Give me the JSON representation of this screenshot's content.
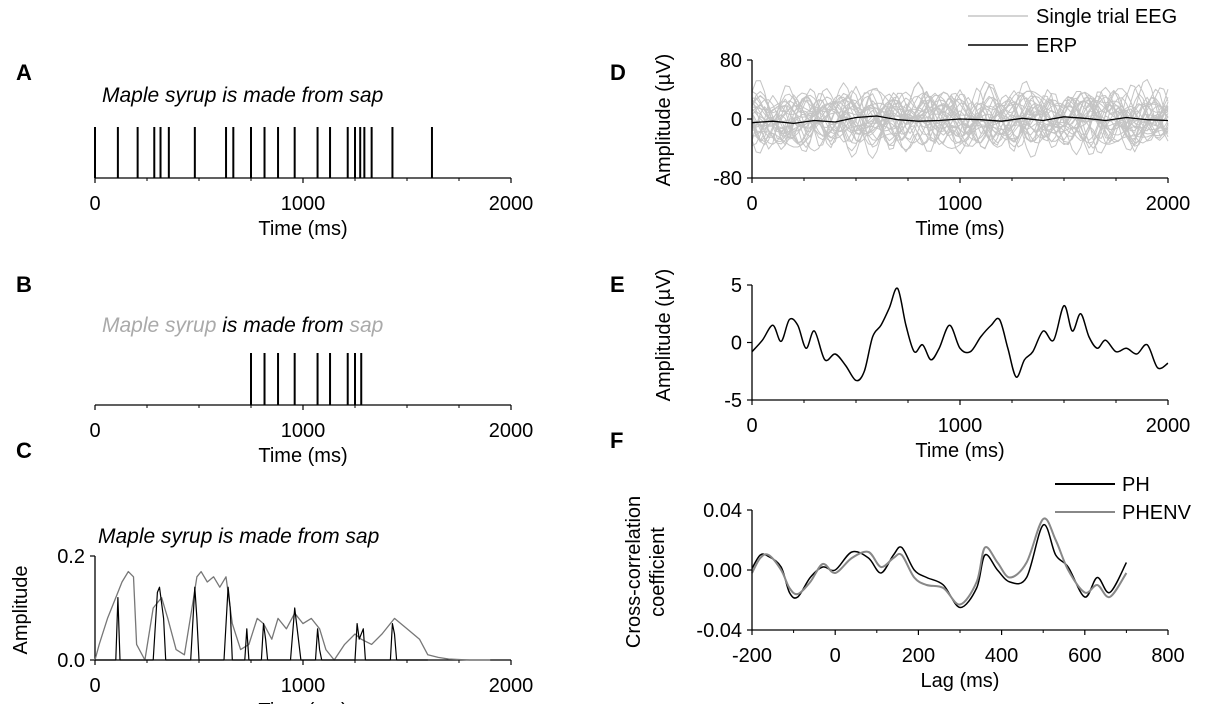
{
  "chart_data": [
    {
      "id": "A",
      "panel_letter": "A",
      "type": "event-raster",
      "sentence": "Maple syrup  is made from sap",
      "xlabel": "Time (ms)",
      "xlim": [
        0,
        2000
      ],
      "xticks": [
        0,
        1000,
        2000
      ],
      "tick_labels": [
        "0",
        "1000",
        "2000"
      ],
      "events_ms": [
        0,
        110,
        205,
        285,
        315,
        355,
        480,
        630,
        665,
        750,
        815,
        880,
        960,
        1070,
        1130,
        1215,
        1250,
        1275,
        1295,
        1330,
        1430,
        1620
      ]
    },
    {
      "id": "B",
      "panel_letter": "B",
      "type": "event-raster",
      "sentence_parts": [
        {
          "text": "Maple syrup",
          "color": "#aaaaaa"
        },
        {
          "text": "  is made from ",
          "color": "#000000"
        },
        {
          "text": "sap",
          "color": "#aaaaaa"
        }
      ],
      "xlabel": "Time (ms)",
      "xlim": [
        0,
        2000
      ],
      "xticks": [
        0,
        1000,
        2000
      ],
      "tick_labels": [
        "0",
        "1000",
        "2000"
      ],
      "events_ms": [
        750,
        815,
        880,
        960,
        1070,
        1130,
        1215,
        1250,
        1280
      ]
    },
    {
      "id": "C",
      "panel_letter": "C",
      "type": "line",
      "sentence": "Maple syrup  is made from sap",
      "xlabel": "Time (ms)",
      "ylabel": "Amplitude",
      "xlim": [
        0,
        2000
      ],
      "ylim": [
        0,
        0.2
      ],
      "xticks": [
        0,
        1000,
        2000
      ],
      "tick_labels": [
        "0",
        "1000",
        "2000"
      ],
      "yticks": [
        0,
        0.2
      ],
      "ytick_labels": [
        "0.0",
        "0.2"
      ],
      "series": [
        {
          "color": "#777777",
          "x": [
            0,
            20,
            60,
            100,
            130,
            160,
            185,
            200,
            240,
            280,
            320,
            350,
            390,
            430,
            470,
            490,
            510,
            540,
            570,
            600,
            630,
            660,
            700,
            740,
            780,
            810,
            850,
            880,
            920,
            960,
            1000,
            1040,
            1080,
            1110,
            1150,
            1200,
            1250,
            1280,
            1330,
            1380,
            1440,
            1500,
            1560,
            1600,
            1650,
            1700,
            1750,
            1800,
            1900
          ],
          "y": [
            0.0,
            0.03,
            0.08,
            0.12,
            0.15,
            0.17,
            0.16,
            0.03,
            0.0,
            0.1,
            0.12,
            0.08,
            0.02,
            0.01,
            0.11,
            0.16,
            0.17,
            0.15,
            0.16,
            0.14,
            0.16,
            0.07,
            0.02,
            0.03,
            0.08,
            0.07,
            0.04,
            0.08,
            0.06,
            0.09,
            0.07,
            0.08,
            0.06,
            0.02,
            0.0,
            0.03,
            0.05,
            0.04,
            0.03,
            0.05,
            0.08,
            0.06,
            0.04,
            0.01,
            0.005,
            0.002,
            0.001,
            0.0,
            0.0
          ]
        },
        {
          "color": "#000000",
          "x": [
            0,
            100,
            110,
            120,
            130,
            280,
            300,
            310,
            330,
            340,
            460,
            480,
            490,
            500,
            620,
            640,
            650,
            660,
            720,
            730,
            740,
            800,
            810,
            820,
            830,
            940,
            960,
            975,
            990,
            1060,
            1070,
            1080,
            1090,
            1250,
            1260,
            1270,
            1290,
            1300,
            1420,
            1430,
            1440,
            1450,
            1600
          ],
          "y": [
            0,
            0,
            0.12,
            0,
            0,
            0,
            0.13,
            0.14,
            0.08,
            0,
            0,
            0.14,
            0.08,
            0,
            0,
            0.14,
            0.1,
            0,
            0,
            0.06,
            0,
            0,
            0.07,
            0.04,
            0,
            0,
            0.1,
            0.05,
            0,
            0,
            0.06,
            0.02,
            0,
            0,
            0.07,
            0.04,
            0.06,
            0,
            0,
            0.07,
            0.05,
            0,
            0
          ]
        }
      ]
    },
    {
      "id": "D",
      "panel_letter": "D",
      "type": "line",
      "xlabel": "Time (ms)",
      "ylabel": "Amplitude (µV)",
      "xlim": [
        0,
        2000
      ],
      "ylim": [
        -80,
        80
      ],
      "xticks": [
        0,
        1000,
        2000
      ],
      "tick_labels": [
        "0",
        "1000",
        "2000"
      ],
      "yticks": [
        -80,
        0,
        80
      ],
      "ytick_labels": [
        "-80",
        "0",
        "80"
      ],
      "legend": [
        {
          "name": "Single trial EEG",
          "color": "#bbbbbb"
        },
        {
          "name": "ERP",
          "color": "#000000"
        }
      ],
      "single_trial_count": 30,
      "single_trial_amplitude": 40,
      "erp": {
        "x": [
          0,
          100,
          200,
          300,
          400,
          500,
          600,
          700,
          800,
          900,
          1000,
          1100,
          1200,
          1300,
          1400,
          1500,
          1600,
          1700,
          1800,
          1900,
          2000
        ],
        "y": [
          -5,
          -3,
          -6,
          -2,
          -4,
          2,
          4,
          -1,
          -3,
          -2,
          0,
          -1,
          -3,
          1,
          -2,
          3,
          1,
          -2,
          2,
          -1,
          -2
        ]
      }
    },
    {
      "id": "E",
      "panel_letter": "E",
      "type": "line",
      "xlabel": "Time (ms)",
      "ylabel": "Amplitude (µV)",
      "xlim": [
        0,
        2000
      ],
      "ylim": [
        -5,
        5
      ],
      "xticks": [
        0,
        1000,
        2000
      ],
      "tick_labels": [
        "0",
        "1000",
        "2000"
      ],
      "yticks": [
        -5,
        0,
        5
      ],
      "ytick_labels": [
        "-5",
        "0",
        "5"
      ],
      "series": [
        {
          "color": "#000000",
          "x": [
            0,
            50,
            100,
            140,
            180,
            220,
            260,
            300,
            350,
            400,
            450,
            500,
            540,
            580,
            620,
            660,
            700,
            740,
            780,
            820,
            860,
            900,
            950,
            1000,
            1050,
            1100,
            1150,
            1190,
            1230,
            1270,
            1310,
            1350,
            1400,
            1450,
            1500,
            1540,
            1580,
            1620,
            1660,
            1700,
            1750,
            1800,
            1850,
            1900,
            1950,
            2000
          ],
          "y": [
            -0.8,
            0.2,
            1.5,
            0.1,
            2.0,
            1.5,
            -0.5,
            1.0,
            -1.5,
            -1.0,
            -2.0,
            -3.3,
            -2.5,
            0.5,
            1.5,
            3.0,
            4.7,
            1.5,
            -0.8,
            -0.2,
            -1.5,
            -0.5,
            1.5,
            -0.5,
            -0.8,
            0.5,
            1.5,
            2.0,
            -0.5,
            -3.0,
            -1.5,
            -0.8,
            1.0,
            0.2,
            3.2,
            1.0,
            2.5,
            0.5,
            -0.5,
            0.2,
            -0.8,
            -0.5,
            -1.0,
            -0.2,
            -2.2,
            -1.8
          ]
        }
      ]
    },
    {
      "id": "F",
      "panel_letter": "F",
      "type": "line",
      "xlabel": "Lag (ms)",
      "ylabel_lines": [
        "Cross-correlation",
        "coefficient"
      ],
      "xlim": [
        -200,
        800
      ],
      "ylim": [
        -0.04,
        0.04
      ],
      "xticks": [
        -200,
        0,
        200,
        400,
        600,
        800
      ],
      "tick_labels": [
        "-200",
        "0",
        "200",
        "400",
        "600",
        "800"
      ],
      "yticks": [
        -0.04,
        0.0,
        0.04
      ],
      "ytick_labels": [
        "-0.04",
        "0.00",
        "0.04"
      ],
      "legend": [
        {
          "name": "PH",
          "color": "#000000"
        },
        {
          "name": "PHENV",
          "color": "#888888"
        }
      ],
      "series": [
        {
          "name": "PH",
          "color": "#000000",
          "x": [
            -200,
            -180,
            -160,
            -130,
            -110,
            -90,
            -60,
            -30,
            0,
            40,
            80,
            110,
            140,
            160,
            190,
            220,
            260,
            300,
            340,
            360,
            390,
            420,
            460,
            500,
            530,
            560,
            600,
            630,
            660,
            700
          ],
          "y": [
            0.001,
            0.01,
            0.009,
            0.002,
            -0.015,
            -0.018,
            -0.005,
            0.002,
            0.0,
            0.012,
            0.008,
            -0.002,
            0.01,
            0.015,
            0.0,
            -0.005,
            -0.01,
            -0.025,
            -0.012,
            0.01,
            0.0,
            -0.008,
            -0.005,
            0.03,
            0.01,
            0.002,
            -0.018,
            -0.005,
            -0.015,
            0.005
          ]
        },
        {
          "name": "PHENV",
          "color": "#888888",
          "x": [
            -200,
            -180,
            -160,
            -130,
            -110,
            -90,
            -60,
            -30,
            0,
            40,
            80,
            110,
            140,
            160,
            190,
            220,
            260,
            300,
            340,
            360,
            390,
            420,
            460,
            500,
            530,
            560,
            600,
            630,
            660,
            700
          ],
          "y": [
            -0.002,
            0.008,
            0.01,
            0.0,
            -0.012,
            -0.016,
            -0.008,
            0.004,
            -0.002,
            0.008,
            0.012,
            0.002,
            0.008,
            0.01,
            -0.005,
            -0.01,
            -0.012,
            -0.023,
            -0.008,
            0.015,
            0.005,
            -0.005,
            0.005,
            0.034,
            0.02,
            0.0,
            -0.015,
            -0.01,
            -0.018,
            -0.002
          ]
        }
      ]
    }
  ]
}
